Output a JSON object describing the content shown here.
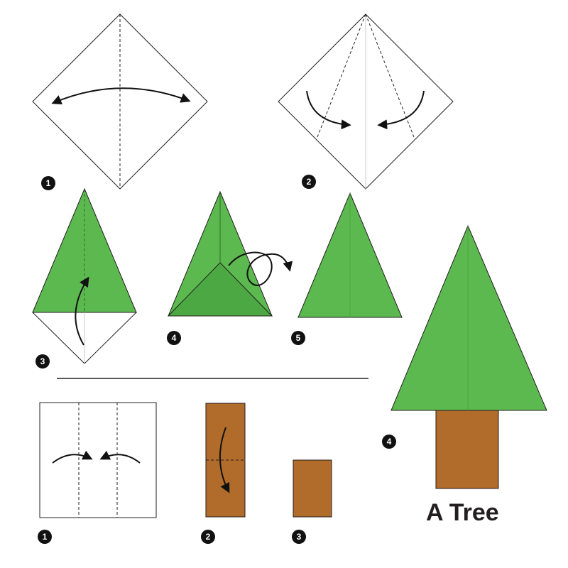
{
  "title": "A Tree",
  "colors": {
    "green": "#5cb94f",
    "green_dark": "#4ca842",
    "brown": "#b16b2a",
    "outline": "#231f20",
    "badge": "#111111"
  },
  "tree_steps": [
    {
      "number": "1"
    },
    {
      "number": "2"
    },
    {
      "number": "3"
    },
    {
      "number": "4"
    },
    {
      "number": "5"
    }
  ],
  "trunk_steps": [
    {
      "number": "1"
    },
    {
      "number": "2"
    },
    {
      "number": "3"
    },
    {
      "number": "4"
    }
  ]
}
